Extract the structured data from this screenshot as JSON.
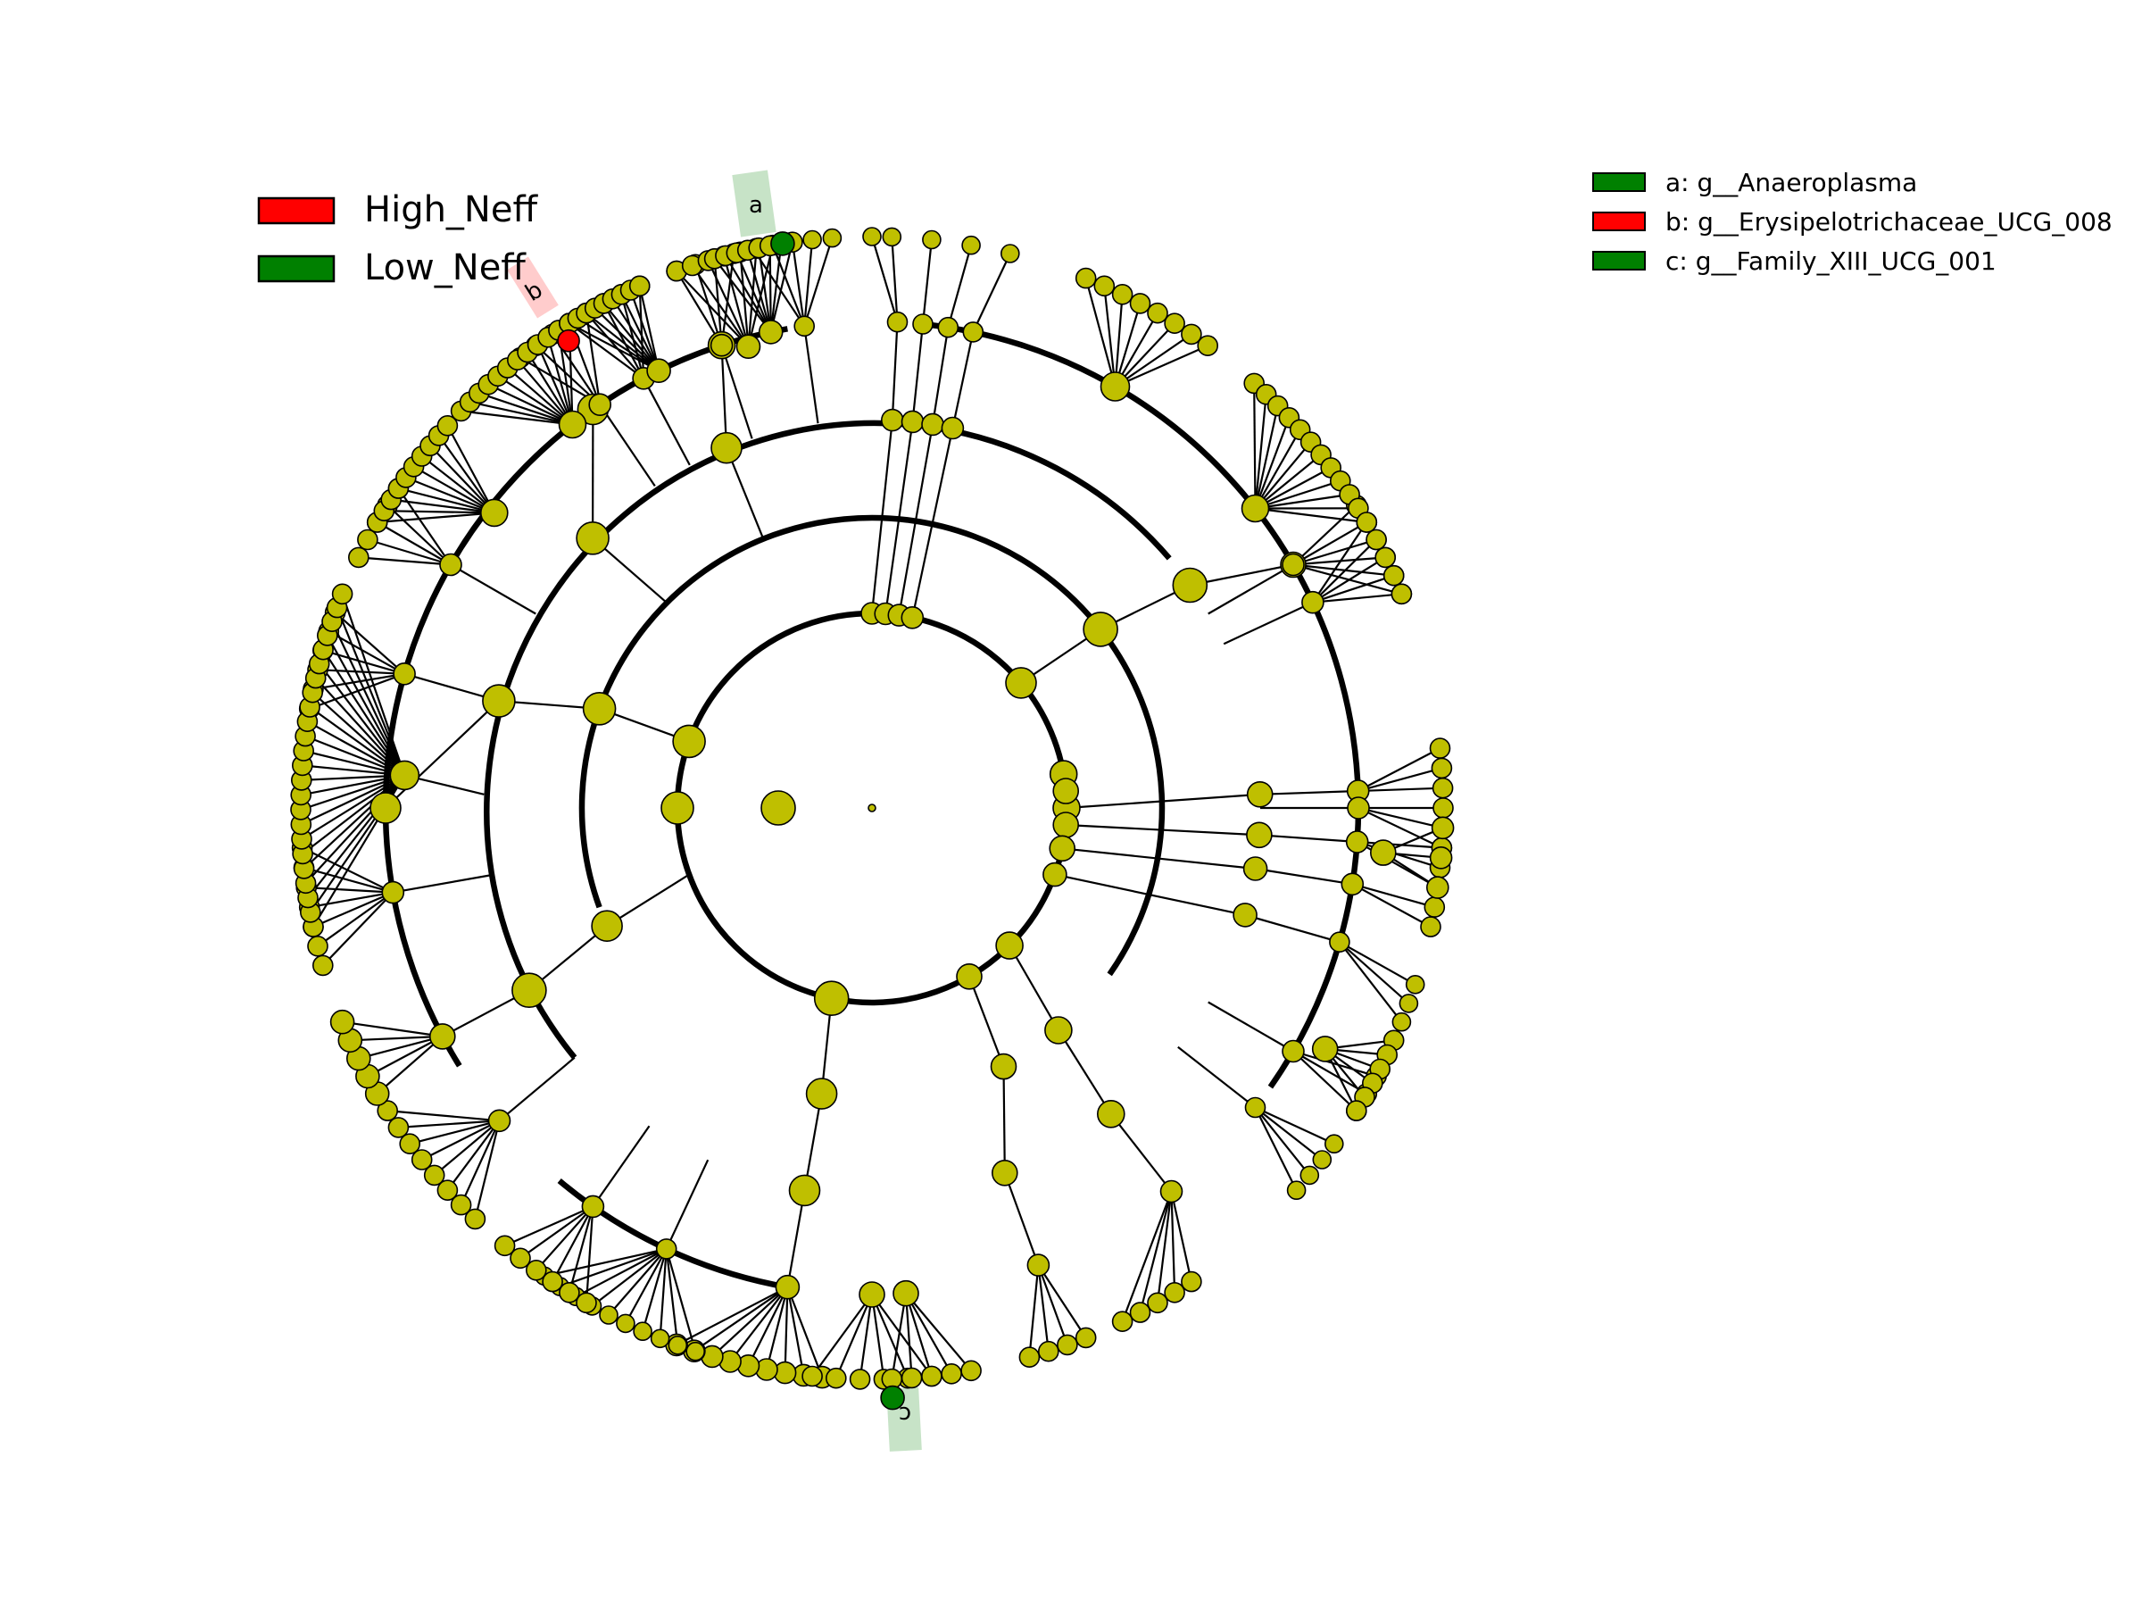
{
  "groups": [
    {
      "name": "High_Neff",
      "color": "#ff0000"
    },
    {
      "name": "Low_Neff",
      "color": "#008000"
    }
  ],
  "biomarkers": [
    {
      "key": "a",
      "label": "a: g__Anaeroplasma",
      "color": "#008000"
    },
    {
      "key": "b",
      "label": "b: g__Erysipelotrichaceae_UCG_008",
      "color": "#ff0000"
    },
    {
      "key": "c",
      "label": "c: g__Family_XIII_UCG_001",
      "color": "#008000"
    }
  ],
  "node_color": "#bfbf00",
  "clade_labels": {
    "a": "a",
    "b": "b",
    "c": "c"
  }
}
